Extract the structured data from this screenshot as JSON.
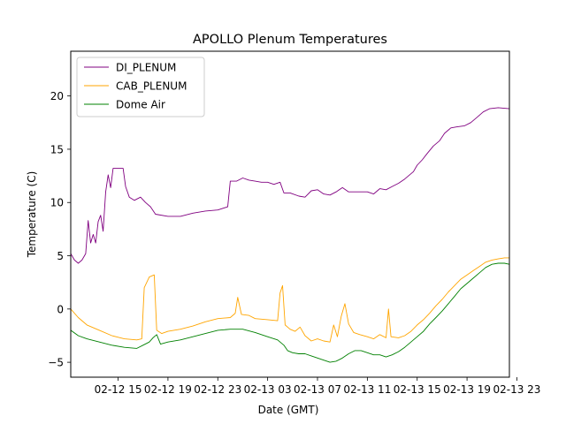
{
  "chart_data": {
    "type": "line",
    "title": "APOLLO Plenum Temperatures",
    "xlabel": "Date (GMT)",
    "ylabel": "Temperature (C)",
    "xlim": [
      11.2,
      46.4
    ],
    "ylim": [
      -6.4,
      24.2
    ],
    "x_ticks": [
      {
        "value": 15,
        "label": "02-12 15"
      },
      {
        "value": 19,
        "label": "02-12 19"
      },
      {
        "value": 23,
        "label": "02-12 23"
      },
      {
        "value": 27,
        "label": "02-13 03"
      },
      {
        "value": 31,
        "label": "02-13 07"
      },
      {
        "value": 35,
        "label": "02-13 11"
      },
      {
        "value": 39,
        "label": "02-13 15"
      },
      {
        "value": 43,
        "label": "02-13 19"
      },
      {
        "value": 47,
        "label": "02-13 23"
      }
    ],
    "y_ticks": [
      {
        "value": -5,
        "label": "−5"
      },
      {
        "value": 0,
        "label": "0"
      },
      {
        "value": 5,
        "label": "5"
      },
      {
        "value": 10,
        "label": "10"
      },
      {
        "value": 15,
        "label": "15"
      },
      {
        "value": 20,
        "label": "20"
      }
    ],
    "legend_position": "top-left",
    "series": [
      {
        "name": "DI_PLENUM",
        "color": "#800080",
        "points": [
          [
            11.2,
            5.2
          ],
          [
            11.5,
            4.6
          ],
          [
            11.8,
            4.3
          ],
          [
            12.1,
            4.6
          ],
          [
            12.4,
            5.2
          ],
          [
            12.6,
            8.3
          ],
          [
            12.8,
            6.2
          ],
          [
            13.0,
            7.0
          ],
          [
            13.2,
            6.2
          ],
          [
            13.4,
            8.2
          ],
          [
            13.6,
            8.8
          ],
          [
            13.8,
            7.3
          ],
          [
            14.0,
            11.0
          ],
          [
            14.2,
            12.6
          ],
          [
            14.4,
            11.4
          ],
          [
            14.6,
            13.2
          ],
          [
            15.0,
            13.2
          ],
          [
            15.4,
            13.2
          ],
          [
            15.6,
            11.5
          ],
          [
            15.9,
            10.5
          ],
          [
            16.3,
            10.2
          ],
          [
            16.8,
            10.5
          ],
          [
            17.2,
            10.0
          ],
          [
            17.6,
            9.6
          ],
          [
            18.0,
            8.9
          ],
          [
            19.0,
            8.7
          ],
          [
            20.0,
            8.7
          ],
          [
            21.0,
            9.0
          ],
          [
            22.0,
            9.2
          ],
          [
            23.0,
            9.3
          ],
          [
            23.8,
            9.6
          ],
          [
            24.0,
            12.0
          ],
          [
            24.5,
            12.0
          ],
          [
            25.0,
            12.3
          ],
          [
            25.5,
            12.1
          ],
          [
            26.0,
            12.0
          ],
          [
            26.5,
            11.9
          ],
          [
            27.0,
            11.9
          ],
          [
            27.5,
            11.7
          ],
          [
            28.0,
            11.9
          ],
          [
            28.3,
            10.9
          ],
          [
            28.8,
            10.9
          ],
          [
            29.5,
            10.6
          ],
          [
            30.0,
            10.5
          ],
          [
            30.5,
            11.1
          ],
          [
            31.0,
            11.2
          ],
          [
            31.5,
            10.8
          ],
          [
            32.0,
            10.7
          ],
          [
            32.5,
            11.0
          ],
          [
            33.0,
            11.4
          ],
          [
            33.5,
            11.0
          ],
          [
            34.0,
            11.0
          ],
          [
            35.0,
            11.0
          ],
          [
            35.5,
            10.8
          ],
          [
            36.0,
            11.3
          ],
          [
            36.5,
            11.2
          ],
          [
            37.0,
            11.5
          ],
          [
            37.5,
            11.8
          ],
          [
            38.0,
            12.2
          ],
          [
            38.7,
            12.9
          ],
          [
            39.0,
            13.5
          ],
          [
            39.4,
            14.0
          ],
          [
            39.8,
            14.6
          ],
          [
            40.3,
            15.3
          ],
          [
            40.8,
            15.8
          ],
          [
            41.2,
            16.5
          ],
          [
            41.7,
            17.0
          ],
          [
            42.2,
            17.1
          ],
          [
            42.8,
            17.2
          ],
          [
            43.3,
            17.5
          ],
          [
            43.8,
            18.0
          ],
          [
            44.3,
            18.5
          ],
          [
            44.8,
            18.8
          ],
          [
            45.5,
            18.9
          ],
          [
            46.4,
            18.8
          ]
        ]
      },
      {
        "name": "CAB_PLENUM",
        "color": "#ffa500",
        "points": [
          [
            11.2,
            0.0
          ],
          [
            11.8,
            -0.8
          ],
          [
            12.5,
            -1.5
          ],
          [
            13.5,
            -2.0
          ],
          [
            14.5,
            -2.5
          ],
          [
            15.5,
            -2.8
          ],
          [
            16.5,
            -2.9
          ],
          [
            16.9,
            -2.8
          ],
          [
            17.1,
            2.0
          ],
          [
            17.5,
            3.0
          ],
          [
            17.9,
            3.2
          ],
          [
            18.1,
            -2.0
          ],
          [
            18.5,
            -2.3
          ],
          [
            19.0,
            -2.1
          ],
          [
            20.0,
            -1.9
          ],
          [
            21.0,
            -1.6
          ],
          [
            22.0,
            -1.2
          ],
          [
            23.0,
            -0.9
          ],
          [
            24.0,
            -0.8
          ],
          [
            24.4,
            -0.4
          ],
          [
            24.6,
            1.1
          ],
          [
            24.9,
            -0.5
          ],
          [
            25.5,
            -0.6
          ],
          [
            26.0,
            -0.9
          ],
          [
            27.0,
            -1.0
          ],
          [
            27.8,
            -1.1
          ],
          [
            28.0,
            1.5
          ],
          [
            28.2,
            2.2
          ],
          [
            28.4,
            -1.5
          ],
          [
            28.8,
            -1.9
          ],
          [
            29.2,
            -2.1
          ],
          [
            29.6,
            -1.7
          ],
          [
            30.0,
            -2.5
          ],
          [
            30.5,
            -3.0
          ],
          [
            31.0,
            -2.8
          ],
          [
            31.5,
            -3.0
          ],
          [
            32.0,
            -3.1
          ],
          [
            32.3,
            -1.5
          ],
          [
            32.6,
            -2.6
          ],
          [
            32.9,
            -0.7
          ],
          [
            33.2,
            0.5
          ],
          [
            33.5,
            -1.4
          ],
          [
            33.9,
            -2.2
          ],
          [
            34.4,
            -2.4
          ],
          [
            35.0,
            -2.6
          ],
          [
            35.5,
            -2.8
          ],
          [
            36.0,
            -2.4
          ],
          [
            36.5,
            -2.7
          ],
          [
            36.7,
            0.0
          ],
          [
            36.9,
            -2.6
          ],
          [
            37.5,
            -2.7
          ],
          [
            38.0,
            -2.5
          ],
          [
            38.5,
            -2.1
          ],
          [
            39.0,
            -1.5
          ],
          [
            39.5,
            -1.0
          ],
          [
            40.0,
            -0.4
          ],
          [
            40.5,
            0.3
          ],
          [
            41.0,
            0.9
          ],
          [
            41.5,
            1.6
          ],
          [
            42.0,
            2.2
          ],
          [
            42.5,
            2.8
          ],
          [
            43.0,
            3.2
          ],
          [
            43.5,
            3.6
          ],
          [
            44.0,
            4.0
          ],
          [
            44.5,
            4.4
          ],
          [
            45.0,
            4.6
          ],
          [
            45.5,
            4.7
          ],
          [
            46.0,
            4.8
          ],
          [
            46.4,
            4.8
          ]
        ]
      },
      {
        "name": "Dome Air",
        "color": "#008000",
        "points": [
          [
            11.2,
            -2.0
          ],
          [
            11.8,
            -2.5
          ],
          [
            12.5,
            -2.8
          ],
          [
            13.5,
            -3.1
          ],
          [
            14.5,
            -3.4
          ],
          [
            15.5,
            -3.6
          ],
          [
            16.5,
            -3.7
          ],
          [
            17.0,
            -3.4
          ],
          [
            17.5,
            -3.1
          ],
          [
            17.8,
            -2.7
          ],
          [
            18.1,
            -2.4
          ],
          [
            18.4,
            -3.3
          ],
          [
            19.0,
            -3.1
          ],
          [
            20.0,
            -2.9
          ],
          [
            21.0,
            -2.6
          ],
          [
            22.0,
            -2.3
          ],
          [
            23.0,
            -2.0
          ],
          [
            24.0,
            -1.9
          ],
          [
            25.0,
            -1.9
          ],
          [
            26.0,
            -2.2
          ],
          [
            27.0,
            -2.6
          ],
          [
            27.8,
            -2.9
          ],
          [
            28.3,
            -3.4
          ],
          [
            28.6,
            -3.9
          ],
          [
            29.0,
            -4.1
          ],
          [
            29.5,
            -4.2
          ],
          [
            30.0,
            -4.2
          ],
          [
            30.5,
            -4.4
          ],
          [
            31.0,
            -4.6
          ],
          [
            31.5,
            -4.8
          ],
          [
            32.0,
            -5.0
          ],
          [
            32.5,
            -4.9
          ],
          [
            33.0,
            -4.6
          ],
          [
            33.5,
            -4.2
          ],
          [
            34.0,
            -3.9
          ],
          [
            34.5,
            -3.9
          ],
          [
            35.0,
            -4.1
          ],
          [
            35.5,
            -4.3
          ],
          [
            36.0,
            -4.3
          ],
          [
            36.5,
            -4.5
          ],
          [
            37.0,
            -4.3
          ],
          [
            37.5,
            -4.0
          ],
          [
            38.0,
            -3.6
          ],
          [
            38.5,
            -3.1
          ],
          [
            39.0,
            -2.6
          ],
          [
            39.5,
            -2.1
          ],
          [
            40.0,
            -1.4
          ],
          [
            40.5,
            -0.8
          ],
          [
            41.0,
            -0.2
          ],
          [
            41.5,
            0.5
          ],
          [
            42.0,
            1.2
          ],
          [
            42.5,
            1.9
          ],
          [
            43.0,
            2.4
          ],
          [
            43.5,
            2.9
          ],
          [
            44.0,
            3.4
          ],
          [
            44.5,
            3.9
          ],
          [
            45.0,
            4.2
          ],
          [
            45.5,
            4.3
          ],
          [
            46.0,
            4.3
          ],
          [
            46.4,
            4.2
          ]
        ]
      }
    ]
  }
}
